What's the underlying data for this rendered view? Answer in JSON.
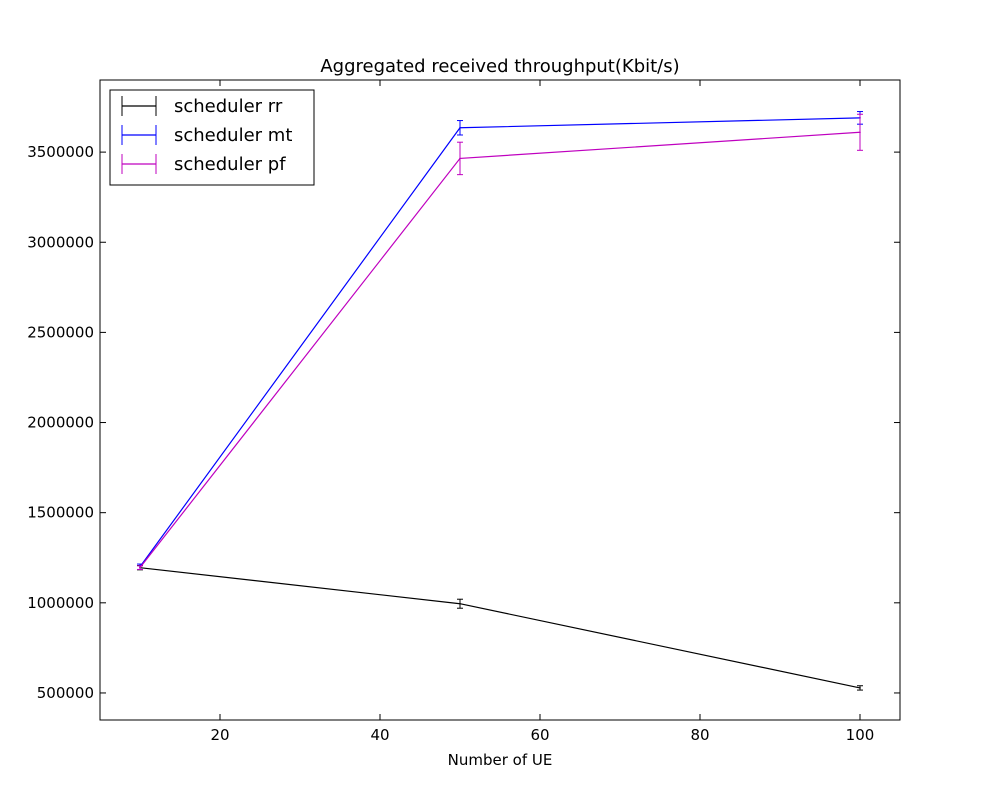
{
  "chart_data": {
    "type": "line",
    "title": "Aggregated received throughput(Kbit/s)",
    "xlabel": "Number of UE",
    "ylabel": "",
    "xlim": [
      5,
      105
    ],
    "ylim": [
      350000,
      3900000
    ],
    "x_ticks": [
      20,
      40,
      60,
      80,
      100
    ],
    "y_ticks": [
      500000,
      1000000,
      1500000,
      2000000,
      2500000,
      3000000,
      3500000
    ],
    "grid": false,
    "legend_position": "top-left",
    "x": [
      10,
      50,
      100
    ],
    "series": [
      {
        "name": "scheduler rr",
        "color": "#000000",
        "values": [
          1195000,
          995000,
          528000
        ],
        "errors": [
          12000,
          25000,
          12000
        ]
      },
      {
        "name": "scheduler mt",
        "color": "#0000ff",
        "values": [
          1200000,
          3635000,
          3690000
        ],
        "errors": [
          15000,
          40000,
          35000
        ]
      },
      {
        "name": "scheduler pf",
        "color": "#bf00bf",
        "values": [
          1195000,
          3465000,
          3610000
        ],
        "errors": [
          10000,
          90000,
          100000
        ]
      }
    ]
  }
}
